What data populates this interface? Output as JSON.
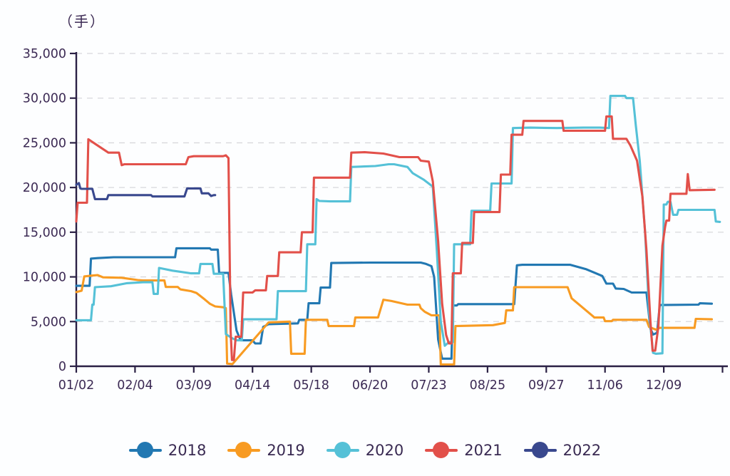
{
  "chart": {
    "unit_label": "（手）",
    "text_color": "#3c2a54",
    "axis_color": "#2b2145",
    "grid_color": "#d8d8dc",
    "background": "#fdfeff"
  },
  "chart_data": {
    "type": "line",
    "title": "（手）",
    "xlabel": "",
    "ylabel": "（手）",
    "grid": "horizontal-dashed",
    "legend_position": "bottom",
    "x_unit": "trading-day-index",
    "x_axis": {
      "tick_days": [
        0,
        22,
        44,
        66,
        88,
        110,
        132,
        154,
        176,
        198,
        220
      ],
      "tick_labels": [
        "01/02",
        "02/04",
        "03/09",
        "04/14",
        "05/18",
        "06/20",
        "07/23",
        "08/25",
        "09/27",
        "11/06",
        "12/09"
      ],
      "extra_unlabeled_tick_day": 242,
      "max_day": 244
    },
    "y_axis": {
      "min": 0,
      "max": 35000,
      "tick_interval": 5000,
      "tick_labels": [
        "0",
        "5,000",
        "10,000",
        "15,000",
        "20,000",
        "25,000",
        "30,000",
        "35,000"
      ]
    },
    "series": [
      {
        "name": "2018",
        "color": "#2278b2",
        "points": [
          [
            0,
            9000
          ],
          [
            5,
            9000
          ],
          [
            5.5,
            12050
          ],
          [
            8,
            12100
          ],
          [
            14,
            12200
          ],
          [
            37,
            12200
          ],
          [
            37.5,
            13200
          ],
          [
            50,
            13200
          ],
          [
            50.5,
            13050
          ],
          [
            53,
            13050
          ],
          [
            53.5,
            10450
          ],
          [
            57,
            10450
          ],
          [
            58,
            8000
          ],
          [
            60,
            4000
          ],
          [
            61.5,
            2900
          ],
          [
            66,
            2900
          ],
          [
            67,
            2550
          ],
          [
            69,
            2550
          ],
          [
            70,
            4400
          ],
          [
            72,
            4700
          ],
          [
            83,
            4800
          ],
          [
            83.5,
            5200
          ],
          [
            86.5,
            5200
          ],
          [
            87,
            7050
          ],
          [
            91,
            7050
          ],
          [
            91.5,
            8800
          ],
          [
            95,
            8800
          ],
          [
            95.5,
            11550
          ],
          [
            110,
            11600
          ],
          [
            129,
            11600
          ],
          [
            131,
            11450
          ],
          [
            133,
            11200
          ],
          [
            134,
            10000
          ],
          [
            135.5,
            3000
          ],
          [
            137,
            850
          ],
          [
            140.5,
            850
          ],
          [
            141,
            6800
          ],
          [
            142.5,
            6800
          ],
          [
            143,
            6950
          ],
          [
            164,
            6950
          ],
          [
            165,
            11300
          ],
          [
            167,
            11350
          ],
          [
            185,
            11350
          ],
          [
            191,
            10850
          ],
          [
            197,
            10100
          ],
          [
            198.5,
            9250
          ],
          [
            201,
            9250
          ],
          [
            202,
            8700
          ],
          [
            205,
            8650
          ],
          [
            208,
            8250
          ],
          [
            213.5,
            8250
          ],
          [
            215,
            4200
          ],
          [
            216,
            3550
          ],
          [
            217.5,
            3750
          ],
          [
            218.5,
            6850
          ],
          [
            233,
            6900
          ],
          [
            233.5,
            7050
          ],
          [
            238,
            7000
          ]
        ]
      },
      {
        "name": "2019",
        "color": "#f89b22",
        "points": [
          [
            0,
            8300
          ],
          [
            2,
            8450
          ],
          [
            3,
            10050
          ],
          [
            6,
            10150
          ],
          [
            8,
            10200
          ],
          [
            10,
            9950
          ],
          [
            17,
            9900
          ],
          [
            23,
            9650
          ],
          [
            25,
            9600
          ],
          [
            33,
            9600
          ],
          [
            33.5,
            8870
          ],
          [
            38,
            8870
          ],
          [
            39,
            8600
          ],
          [
            43,
            8400
          ],
          [
            45,
            8200
          ],
          [
            48,
            7500
          ],
          [
            50,
            7000
          ],
          [
            52,
            6700
          ],
          [
            55,
            6600
          ],
          [
            56,
            6500
          ],
          [
            56.5,
            300
          ],
          [
            58.5,
            250
          ],
          [
            59.5,
            600
          ],
          [
            72,
            4900
          ],
          [
            80,
            5000
          ],
          [
            80.5,
            1400
          ],
          [
            85.5,
            1400
          ],
          [
            86,
            5200
          ],
          [
            94,
            5200
          ],
          [
            94.5,
            4500
          ],
          [
            104,
            4500
          ],
          [
            104.5,
            5450
          ],
          [
            113,
            5450
          ],
          [
            115,
            7450
          ],
          [
            118,
            7300
          ],
          [
            124,
            6900
          ],
          [
            128.5,
            6900
          ],
          [
            129,
            6500
          ],
          [
            130.5,
            6100
          ],
          [
            133,
            5700
          ],
          [
            136,
            5700
          ],
          [
            136.5,
            200
          ],
          [
            141.5,
            200
          ],
          [
            142,
            4500
          ],
          [
            156,
            4600
          ],
          [
            160.5,
            4850
          ],
          [
            161,
            6250
          ],
          [
            163.5,
            6250
          ],
          [
            164,
            8850
          ],
          [
            184,
            8850
          ],
          [
            185.5,
            7600
          ],
          [
            193.5,
            5600
          ],
          [
            194,
            5450
          ],
          [
            197.5,
            5450
          ],
          [
            198,
            5050
          ],
          [
            200.5,
            5050
          ],
          [
            201,
            5200
          ],
          [
            213.5,
            5200
          ],
          [
            214.5,
            4400
          ],
          [
            217,
            4100
          ],
          [
            218.5,
            4300
          ],
          [
            231.5,
            4300
          ],
          [
            232,
            5300
          ],
          [
            238,
            5250
          ]
        ]
      },
      {
        "name": "2020",
        "color": "#55c1d7",
        "points": [
          [
            0,
            5150
          ],
          [
            5.5,
            5150
          ],
          [
            6,
            6900
          ],
          [
            6.5,
            6900
          ],
          [
            7,
            8850
          ],
          [
            13,
            8950
          ],
          [
            19,
            9300
          ],
          [
            25,
            9400
          ],
          [
            28.5,
            9400
          ],
          [
            29,
            8100
          ],
          [
            30.5,
            8100
          ],
          [
            31,
            11000
          ],
          [
            36,
            10700
          ],
          [
            43,
            10400
          ],
          [
            46,
            10400
          ],
          [
            46.5,
            11450
          ],
          [
            51,
            11450
          ],
          [
            51.5,
            10350
          ],
          [
            55,
            10350
          ],
          [
            56,
            3600
          ],
          [
            58,
            3200
          ],
          [
            60,
            2900
          ],
          [
            62,
            2900
          ],
          [
            62.5,
            5250
          ],
          [
            75,
            5250
          ],
          [
            75.5,
            8400
          ],
          [
            86,
            8400
          ],
          [
            86.5,
            13650
          ],
          [
            89.5,
            13650
          ],
          [
            90,
            18700
          ],
          [
            91,
            18500
          ],
          [
            95,
            18450
          ],
          [
            102.5,
            18450
          ],
          [
            103,
            22300
          ],
          [
            112,
            22400
          ],
          [
            117,
            22600
          ],
          [
            119,
            22600
          ],
          [
            124,
            22300
          ],
          [
            126,
            21600
          ],
          [
            130,
            20900
          ],
          [
            133.5,
            20100
          ],
          [
            135,
            13000
          ],
          [
            136.5,
            5000
          ],
          [
            138,
            2300
          ],
          [
            139.5,
            2700
          ],
          [
            141,
            2700
          ],
          [
            141.5,
            13650
          ],
          [
            147.5,
            13650
          ],
          [
            148,
            17400
          ],
          [
            155,
            17400
          ],
          [
            155.5,
            20450
          ],
          [
            163,
            20450
          ],
          [
            163.5,
            26650
          ],
          [
            170,
            26700
          ],
          [
            180,
            26650
          ],
          [
            190,
            26700
          ],
          [
            196,
            26700
          ],
          [
            199.5,
            26650
          ],
          [
            200,
            30250
          ],
          [
            205.5,
            30250
          ],
          [
            206,
            30000
          ],
          [
            208.5,
            30000
          ],
          [
            209.5,
            27000
          ],
          [
            211,
            23000
          ],
          [
            213,
            15000
          ],
          [
            214.5,
            6000
          ],
          [
            216,
            1500
          ],
          [
            217,
            1400
          ],
          [
            219.5,
            1450
          ],
          [
            220,
            18100
          ],
          [
            221,
            18100
          ],
          [
            221.5,
            18400
          ],
          [
            222.5,
            18400
          ],
          [
            223.5,
            16950
          ],
          [
            225,
            16950
          ],
          [
            225.5,
            17500
          ],
          [
            239,
            17500
          ],
          [
            239.5,
            16200
          ],
          [
            241,
            16150
          ]
        ]
      },
      {
        "name": "2021",
        "color": "#e2504a",
        "points": [
          [
            0,
            16200
          ],
          [
            0.5,
            18300
          ],
          [
            4,
            18300
          ],
          [
            4.5,
            25400
          ],
          [
            7,
            24900
          ],
          [
            12,
            23900
          ],
          [
            16,
            23900
          ],
          [
            17,
            22500
          ],
          [
            18,
            22600
          ],
          [
            41,
            22600
          ],
          [
            42,
            23400
          ],
          [
            44,
            23500
          ],
          [
            55,
            23500
          ],
          [
            56,
            23600
          ],
          [
            57,
            23300
          ],
          [
            57.8,
            4000
          ],
          [
            58.3,
            700
          ],
          [
            59,
            700
          ],
          [
            59.7,
            3300
          ],
          [
            61.8,
            3300
          ],
          [
            62.5,
            8250
          ],
          [
            66,
            8250
          ],
          [
            67,
            8500
          ],
          [
            71,
            8500
          ],
          [
            71.5,
            10100
          ],
          [
            75.5,
            10100
          ],
          [
            76,
            12750
          ],
          [
            84,
            12750
          ],
          [
            84.5,
            15000
          ],
          [
            88.5,
            15000
          ],
          [
            89,
            21100
          ],
          [
            102.5,
            21100
          ],
          [
            103,
            23900
          ],
          [
            108,
            23950
          ],
          [
            115,
            23800
          ],
          [
            121,
            23400
          ],
          [
            128,
            23400
          ],
          [
            129,
            23000
          ],
          [
            132,
            22900
          ],
          [
            133.5,
            20700
          ],
          [
            135.5,
            14000
          ],
          [
            137,
            7000
          ],
          [
            138.5,
            3500
          ],
          [
            139.5,
            2550
          ],
          [
            140.5,
            2550
          ],
          [
            141,
            10400
          ],
          [
            144,
            10400
          ],
          [
            144.5,
            13800
          ],
          [
            148.5,
            13800
          ],
          [
            149,
            17250
          ],
          [
            158.5,
            17250
          ],
          [
            159,
            21450
          ],
          [
            162.5,
            21450
          ],
          [
            163,
            25900
          ],
          [
            167,
            25900
          ],
          [
            167.5,
            27450
          ],
          [
            182,
            27450
          ],
          [
            182.5,
            26350
          ],
          [
            198,
            26350
          ],
          [
            198.5,
            27950
          ],
          [
            200.5,
            27950
          ],
          [
            201,
            25450
          ],
          [
            206,
            25450
          ],
          [
            207.5,
            24700
          ],
          [
            210,
            23000
          ],
          [
            212,
            19000
          ],
          [
            213.5,
            13000
          ],
          [
            215,
            5000
          ],
          [
            215.8,
            1750
          ],
          [
            216.8,
            1750
          ],
          [
            218,
            4500
          ],
          [
            219.5,
            13500
          ],
          [
            220.5,
            15600
          ],
          [
            221,
            16300
          ],
          [
            222,
            16300
          ],
          [
            222.5,
            19300
          ],
          [
            228.5,
            19300
          ],
          [
            229,
            21500
          ],
          [
            229.7,
            19700
          ],
          [
            239,
            19750
          ]
        ]
      },
      {
        "name": "2022",
        "color": "#39488e",
        "points": [
          [
            0,
            20300
          ],
          [
            1,
            20500
          ],
          [
            1.5,
            19900
          ],
          [
            2,
            19850
          ],
          [
            6,
            19850
          ],
          [
            7,
            18700
          ],
          [
            11.5,
            18700
          ],
          [
            12,
            19150
          ],
          [
            28,
            19150
          ],
          [
            28.5,
            19000
          ],
          [
            40.5,
            19000
          ],
          [
            41.5,
            19900
          ],
          [
            46.5,
            19900
          ],
          [
            47,
            19350
          ],
          [
            49.5,
            19350
          ],
          [
            50.5,
            19050
          ],
          [
            51.5,
            19150
          ],
          [
            52,
            19150
          ]
        ]
      }
    ],
    "legend": [
      "2018",
      "2019",
      "2020",
      "2021",
      "2022"
    ]
  }
}
